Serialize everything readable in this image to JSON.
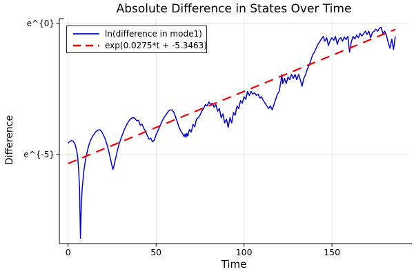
{
  "chart": {
    "title": "Absolute Difference in States Over Time",
    "xlabel": "Time",
    "ylabel": "Difference",
    "legend": [
      {
        "label": "ln(difference in mode1)",
        "color": "#0000dd",
        "style": "solid"
      },
      {
        "label": "exp(0.0275*t + -5.3463)",
        "color": "#ee0000",
        "style": "dashed"
      }
    ]
  },
  "chart_data": {
    "type": "line",
    "title": "Absolute Difference in States Over Time",
    "xlabel": "Time",
    "ylabel": "Difference",
    "y_scale": "log (labels shown as e^{n})",
    "grid": true,
    "legend_position": "top-left",
    "xlim": [
      -5,
      193.5
    ],
    "ylim_ln": [
      -8.4,
      0.18
    ],
    "x_ticks": [
      0,
      50,
      100,
      150
    ],
    "x_tick_labels": [
      "0",
      "50",
      "100",
      "150"
    ],
    "y_ticks": [
      {
        "value": 0,
        "label": "e^{0}"
      },
      {
        "value": -5,
        "label": "e^{-5}"
      }
    ],
    "series": [
      {
        "name": "ln(difference in mode1)",
        "color": "#0000dd",
        "style": "solid",
        "points_t_ln": [
          [
            0,
            -4.57
          ],
          [
            1,
            -4.5
          ],
          [
            2,
            -4.47
          ],
          [
            3,
            -4.5
          ],
          [
            4,
            -4.62
          ],
          [
            5,
            -4.9
          ],
          [
            5.5,
            -5.15
          ],
          [
            6,
            -5.6
          ],
          [
            6.5,
            -6.3
          ],
          [
            7,
            -8.2
          ],
          [
            7.5,
            -6.9
          ],
          [
            8,
            -6.3
          ],
          [
            9,
            -5.6
          ],
          [
            10,
            -5.15
          ],
          [
            11,
            -4.85
          ],
          [
            12,
            -4.6
          ],
          [
            13,
            -4.42
          ],
          [
            14,
            -4.3
          ],
          [
            15,
            -4.2
          ],
          [
            16,
            -4.12
          ],
          [
            17,
            -4.07
          ],
          [
            18,
            -4.06
          ],
          [
            19,
            -4.12
          ],
          [
            20,
            -4.25
          ],
          [
            21,
            -4.4
          ],
          [
            22,
            -4.6
          ],
          [
            23,
            -4.85
          ],
          [
            24,
            -5.15
          ],
          [
            25,
            -5.45
          ],
          [
            25.5,
            -5.57
          ],
          [
            26,
            -5.45
          ],
          [
            27,
            -5.15
          ],
          [
            28,
            -4.85
          ],
          [
            29,
            -4.6
          ],
          [
            30,
            -4.4
          ],
          [
            31,
            -4.22
          ],
          [
            32,
            -4.05
          ],
          [
            33,
            -3.9
          ],
          [
            34,
            -3.78
          ],
          [
            35,
            -3.68
          ],
          [
            36,
            -3.62
          ],
          [
            37,
            -3.6
          ],
          [
            38,
            -3.62
          ],
          [
            39,
            -3.72
          ],
          [
            40,
            -3.7
          ],
          [
            41,
            -3.88
          ],
          [
            42,
            -3.85
          ],
          [
            43,
            -4.0
          ],
          [
            44,
            -4.12
          ],
          [
            45,
            -4.28
          ],
          [
            46,
            -4.42
          ],
          [
            47,
            -4.38
          ],
          [
            48,
            -4.52
          ],
          [
            49,
            -4.45
          ],
          [
            50,
            -4.25
          ],
          [
            51,
            -4.1
          ],
          [
            52,
            -3.95
          ],
          [
            53,
            -3.8
          ],
          [
            54,
            -3.65
          ],
          [
            55,
            -3.55
          ],
          [
            56,
            -3.45
          ],
          [
            57,
            -3.35
          ],
          [
            58,
            -3.3
          ],
          [
            59,
            -3.3
          ],
          [
            60,
            -3.38
          ],
          [
            61,
            -3.55
          ],
          [
            62,
            -3.75
          ],
          [
            63,
            -3.95
          ],
          [
            64,
            -4.1
          ],
          [
            65,
            -4.2
          ],
          [
            66,
            -4.32
          ],
          [
            66.5,
            -4.22
          ],
          [
            67,
            -4.35
          ],
          [
            67.5,
            -4.2
          ],
          [
            68,
            -4.3
          ],
          [
            69,
            -4.05
          ],
          [
            70,
            -4.15
          ],
          [
            71,
            -3.85
          ],
          [
            72,
            -3.95
          ],
          [
            73,
            -3.65
          ],
          [
            74,
            -3.6
          ],
          [
            75,
            -3.5
          ],
          [
            76,
            -3.35
          ],
          [
            77,
            -3.25
          ],
          [
            78,
            -3.1
          ],
          [
            79,
            -3.15
          ],
          [
            80,
            -3.0
          ],
          [
            81,
            -3.1
          ],
          [
            82,
            -3.05
          ],
          [
            83,
            -3.2
          ],
          [
            84,
            -3.1
          ],
          [
            85,
            -3.35
          ],
          [
            86,
            -3.25
          ],
          [
            87,
            -3.6
          ],
          [
            88,
            -3.45
          ],
          [
            89,
            -3.8
          ],
          [
            90,
            -3.65
          ],
          [
            91,
            -3.97
          ],
          [
            92,
            -3.6
          ],
          [
            93,
            -3.8
          ],
          [
            94,
            -3.4
          ],
          [
            95,
            -3.5
          ],
          [
            96,
            -3.15
          ],
          [
            97,
            -3.25
          ],
          [
            98,
            -2.95
          ],
          [
            99,
            -3.05
          ],
          [
            100,
            -2.8
          ],
          [
            101,
            -2.9
          ],
          [
            102,
            -2.6
          ],
          [
            103,
            -2.75
          ],
          [
            104,
            -2.6
          ],
          [
            105,
            -2.7
          ],
          [
            106,
            -2.65
          ],
          [
            107,
            -2.75
          ],
          [
            108,
            -2.7
          ],
          [
            109,
            -2.85
          ],
          [
            110,
            -2.8
          ],
          [
            111,
            -2.95
          ],
          [
            112,
            -3.05
          ],
          [
            113,
            -3.15
          ],
          [
            114,
            -3.25
          ],
          [
            115,
            -3.15
          ],
          [
            116,
            -3.3
          ],
          [
            117,
            -3.1
          ],
          [
            118,
            -2.9
          ],
          [
            119,
            -2.7
          ],
          [
            120,
            -2.6
          ],
          [
            121,
            -2.2
          ],
          [
            121.5,
            -1.95
          ],
          [
            122,
            -2.3
          ],
          [
            123,
            -2.1
          ],
          [
            124,
            -2.3
          ],
          [
            125,
            -2.05
          ],
          [
            126,
            -2.15
          ],
          [
            127,
            -1.95
          ],
          [
            128,
            -2.1
          ],
          [
            129,
            -1.95
          ],
          [
            130,
            -2.15
          ],
          [
            131,
            -1.95
          ],
          [
            132,
            -2.15
          ],
          [
            133,
            -2.4
          ],
          [
            134,
            -2.1
          ],
          [
            135,
            -1.95
          ],
          [
            136,
            -1.75
          ],
          [
            137,
            -1.6
          ],
          [
            138,
            -1.4
          ],
          [
            139,
            -1.2
          ],
          [
            140,
            -1.1
          ],
          [
            141,
            -0.95
          ],
          [
            142,
            -0.8
          ],
          [
            143,
            -0.7
          ],
          [
            144,
            -0.6
          ],
          [
            145,
            -0.5
          ],
          [
            146,
            -0.68
          ],
          [
            147,
            -0.55
          ],
          [
            148,
            -0.85
          ],
          [
            149,
            -0.65
          ],
          [
            150,
            -0.55
          ],
          [
            151,
            -0.65
          ],
          [
            152,
            -0.5
          ],
          [
            153,
            -0.8
          ],
          [
            154,
            -0.6
          ],
          [
            155,
            -0.55
          ],
          [
            156,
            -0.68
          ],
          [
            157,
            -0.52
          ],
          [
            158,
            -0.62
          ],
          [
            159,
            -0.5
          ],
          [
            160,
            -1.1
          ],
          [
            161,
            -0.7
          ],
          [
            162,
            -0.5
          ],
          [
            163,
            -0.6
          ],
          [
            164,
            -0.45
          ],
          [
            165,
            -0.55
          ],
          [
            166,
            -0.38
          ],
          [
            167,
            -0.48
          ],
          [
            168,
            -0.4
          ],
          [
            169,
            -0.3
          ],
          [
            170,
            -0.42
          ],
          [
            171,
            -0.3
          ],
          [
            172,
            -0.55
          ],
          [
            173,
            -0.35
          ],
          [
            174,
            -0.3
          ],
          [
            175,
            -0.22
          ],
          [
            176,
            -0.3
          ],
          [
            177,
            -0.18
          ],
          [
            178,
            -0.15
          ],
          [
            179,
            -0.4
          ],
          [
            180,
            -0.3
          ],
          [
            181,
            -0.45
          ],
          [
            182,
            -0.75
          ],
          [
            183,
            -0.95
          ],
          [
            184,
            -0.6
          ],
          [
            185,
            -1.0
          ],
          [
            186,
            -0.5
          ]
        ]
      },
      {
        "name": "exp(0.0275*t + -5.3463)",
        "color": "#ee0000",
        "style": "dashed",
        "fit_slope": 0.0275,
        "fit_intercept": -5.3463,
        "t_range": [
          0,
          186
        ]
      }
    ]
  }
}
